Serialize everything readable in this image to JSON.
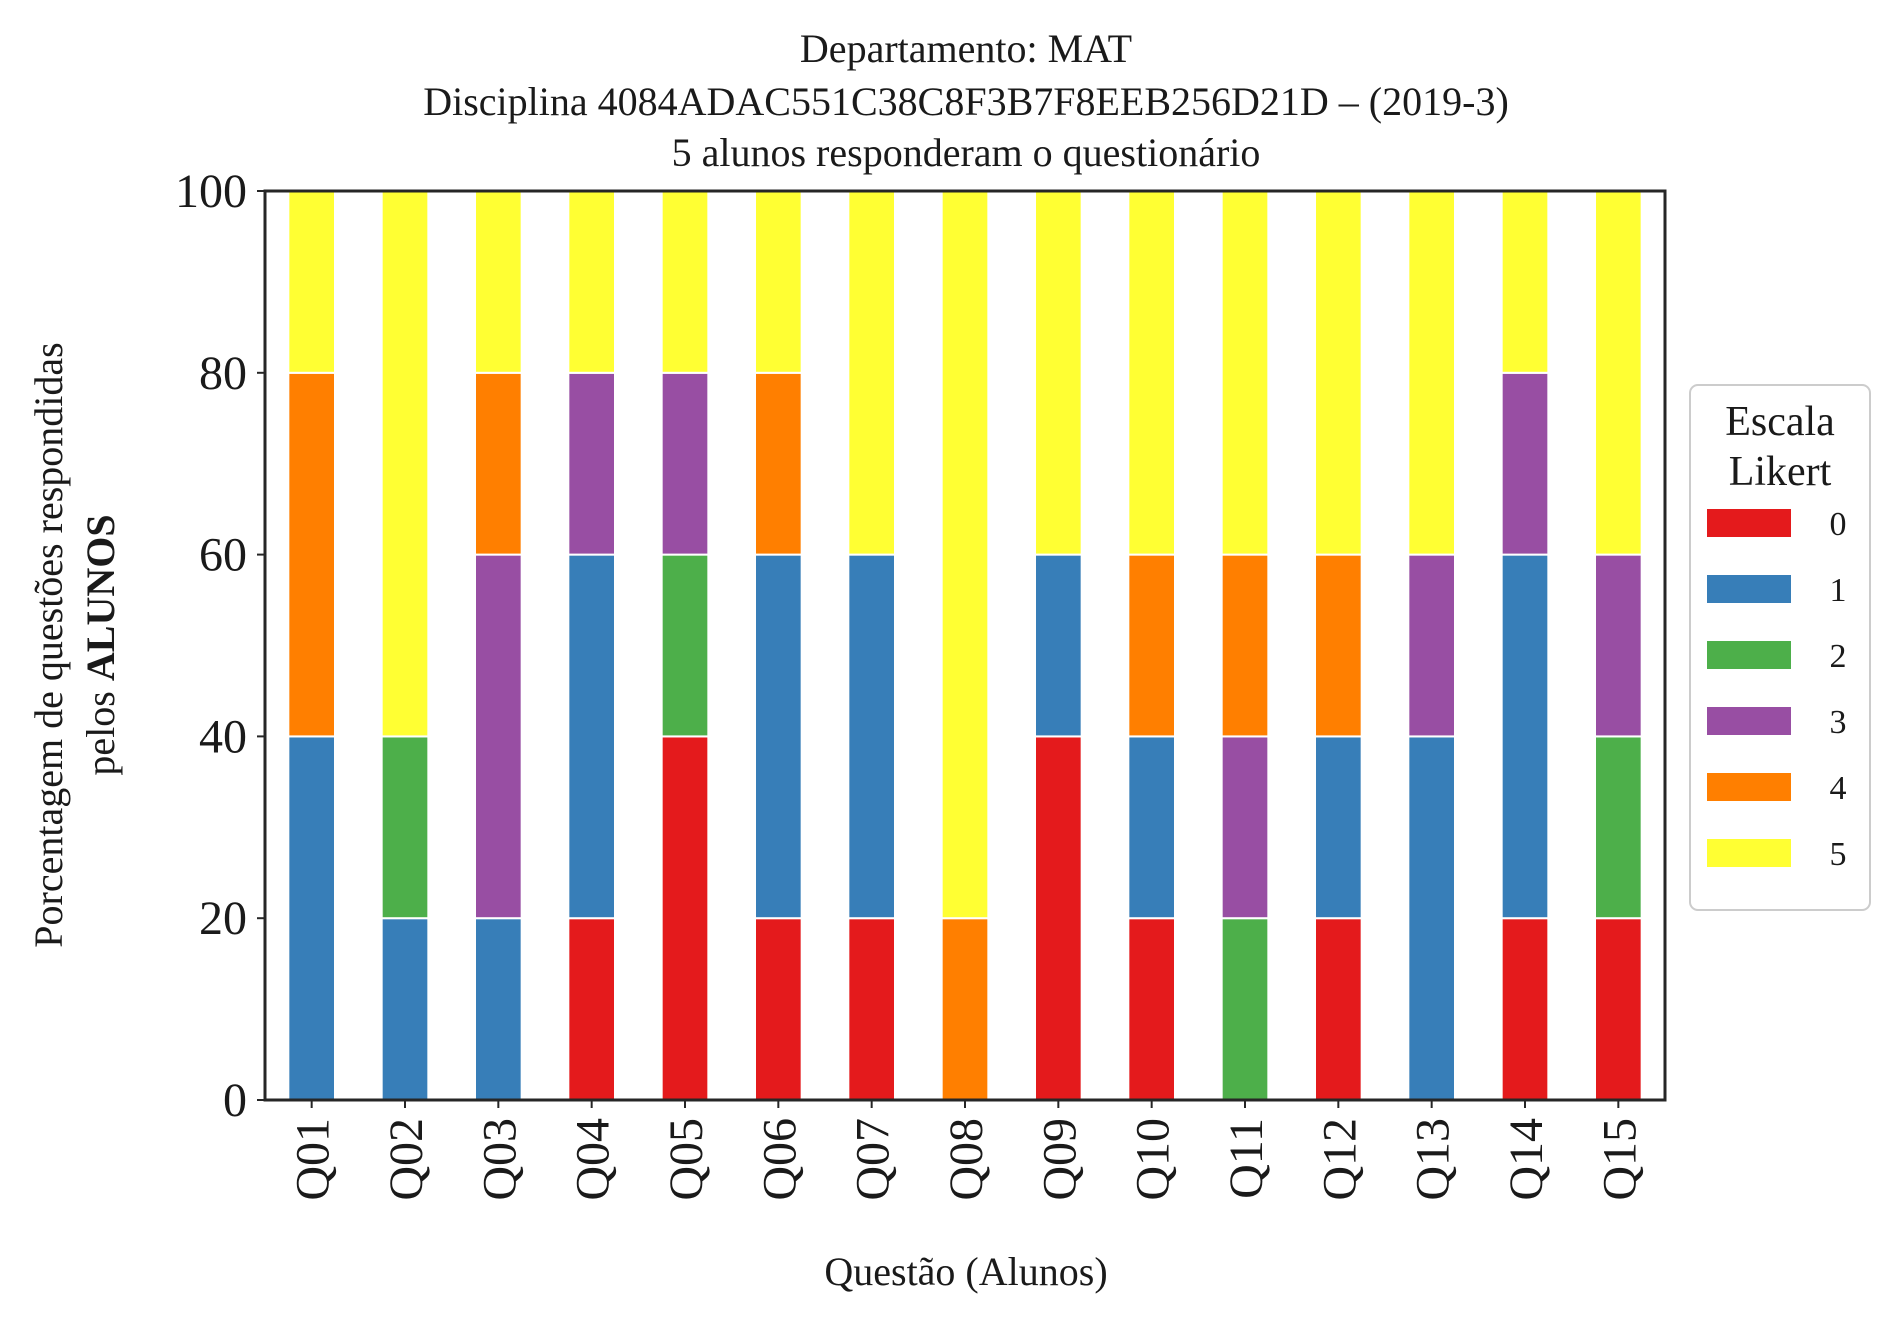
{
  "chart_data": {
    "type": "bar",
    "stacked": true,
    "title_lines": [
      "Departamento: MAT",
      "Disciplina 4084ADAC551C38C8F3B7F8EEB256D21D – (2019-3)",
      "5 alunos responderam o questionário"
    ],
    "xlabel": "Questão (Alunos)",
    "ylabel_line1": "Porcentagem de questões respondidas",
    "ylabel_line2_prefix": "pelos ",
    "ylabel_line2_bold": "ALUNOS",
    "ylim": [
      0,
      100
    ],
    "yticks": [
      "0",
      "20",
      "40",
      "60",
      "80",
      "100"
    ],
    "categories": [
      "Q01",
      "Q02",
      "Q03",
      "Q04",
      "Q05",
      "Q06",
      "Q07",
      "Q08",
      "Q09",
      "Q10",
      "Q11",
      "Q12",
      "Q13",
      "Q14",
      "Q15"
    ],
    "series": [
      {
        "name": "0",
        "color": "#e41a1c",
        "values": [
          0,
          0,
          0,
          20,
          40,
          20,
          20,
          0,
          40,
          20,
          0,
          20,
          0,
          20,
          20
        ]
      },
      {
        "name": "1",
        "color": "#377eb8",
        "values": [
          40,
          20,
          20,
          40,
          0,
          40,
          40,
          0,
          20,
          20,
          0,
          20,
          40,
          40,
          0
        ]
      },
      {
        "name": "2",
        "color": "#4daf4a",
        "values": [
          0,
          20,
          0,
          0,
          20,
          0,
          0,
          0,
          0,
          0,
          20,
          0,
          0,
          0,
          20
        ]
      },
      {
        "name": "3",
        "color": "#984ea3",
        "values": [
          0,
          0,
          40,
          20,
          20,
          0,
          0,
          0,
          0,
          0,
          20,
          0,
          20,
          20,
          20
        ]
      },
      {
        "name": "4",
        "color": "#ff7f00",
        "values": [
          40,
          0,
          20,
          0,
          0,
          20,
          0,
          20,
          0,
          20,
          20,
          20,
          0,
          0,
          0
        ]
      },
      {
        "name": "5",
        "color": "#ffff33",
        "values": [
          20,
          60,
          20,
          20,
          20,
          20,
          40,
          80,
          40,
          40,
          40,
          40,
          40,
          20,
          40
        ]
      }
    ],
    "legend": {
      "title_line1": "Escala",
      "title_line2": "Likert",
      "placement": "right"
    },
    "grid": false
  }
}
